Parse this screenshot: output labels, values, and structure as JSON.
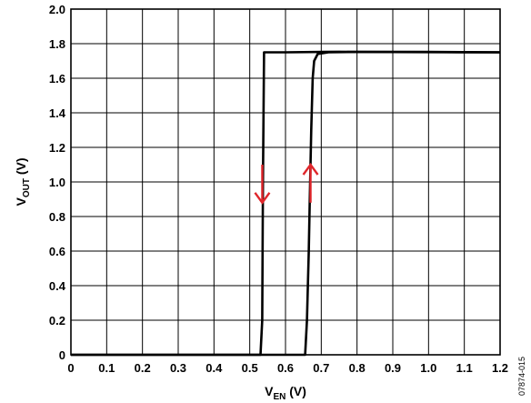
{
  "chart_data": {
    "type": "line",
    "title": "",
    "xlabel": {
      "main": "V",
      "sub": "EN",
      "unit": " (V)"
    },
    "ylabel": {
      "main": "V",
      "sub": "OUT",
      "unit": " (V)"
    },
    "xlim": [
      0,
      1.2
    ],
    "ylim": [
      0,
      2.0
    ],
    "x_ticks": [
      "0",
      "0.1",
      "0.2",
      "0.3",
      "0.4",
      "0.5",
      "0.6",
      "0.7",
      "0.8",
      "0.9",
      "1.0",
      "1.1",
      "1.2"
    ],
    "y_ticks": [
      "0",
      "0.2",
      "0.4",
      "0.6",
      "0.8",
      "1.0",
      "1.2",
      "1.4",
      "1.6",
      "1.8",
      "2.0"
    ],
    "x_tick_values": [
      0,
      0.1,
      0.2,
      0.3,
      0.4,
      0.5,
      0.6,
      0.7,
      0.8,
      0.9,
      1.0,
      1.1,
      1.2
    ],
    "y_tick_values": [
      0,
      0.2,
      0.4,
      0.6,
      0.8,
      1.0,
      1.2,
      1.4,
      1.6,
      1.8,
      2.0
    ],
    "grid": true,
    "legend": "none",
    "series": [
      {
        "points": [
          [
            0,
            0.0
          ],
          [
            0.53,
            0.0
          ],
          [
            0.535,
            0.2
          ],
          [
            0.537,
            1.0
          ],
          [
            0.54,
            1.75
          ],
          [
            0.6,
            1.75
          ],
          [
            0.7,
            1.752
          ],
          [
            0.75,
            1.753
          ],
          [
            0.8,
            1.752
          ],
          [
            0.9,
            1.752
          ],
          [
            1.0,
            1.752
          ],
          [
            1.1,
            1.751
          ],
          [
            1.2,
            1.75
          ]
        ],
        "color": "#000000"
      },
      {
        "points": [
          [
            0,
            0.0
          ],
          [
            0.655,
            0.0
          ],
          [
            0.66,
            0.2
          ],
          [
            0.665,
            0.6
          ],
          [
            0.668,
            0.9
          ],
          [
            0.672,
            1.3
          ],
          [
            0.676,
            1.6
          ],
          [
            0.68,
            1.7
          ],
          [
            0.69,
            1.74
          ],
          [
            0.72,
            1.75
          ],
          [
            0.8,
            1.752
          ],
          [
            1.2,
            1.75
          ]
        ],
        "color": "#000000"
      }
    ],
    "annotations": [
      {
        "type": "arrow",
        "direction": "down",
        "x": 0.535,
        "y_from": 1.1,
        "y_to": 0.88,
        "color": "#e0262b"
      },
      {
        "type": "arrow",
        "direction": "up",
        "x": 0.67,
        "y_from": 0.88,
        "y_to": 1.1,
        "color": "#e0262b"
      }
    ],
    "figure_id": "07874-015"
  }
}
